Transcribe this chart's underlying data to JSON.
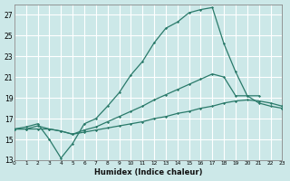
{
  "bg_color": "#cce8e8",
  "grid_color": "#add8d8",
  "line_color": "#2a7a6a",
  "xlim": [
    0,
    23
  ],
  "ylim": [
    13,
    28
  ],
  "xticks": [
    0,
    1,
    2,
    3,
    4,
    5,
    6,
    7,
    8,
    9,
    10,
    11,
    12,
    13,
    14,
    15,
    16,
    17,
    18,
    19,
    20,
    21,
    22,
    23
  ],
  "yticks": [
    13,
    15,
    17,
    19,
    21,
    23,
    25,
    27
  ],
  "xlabel": "Humidex (Indice chaleur)",
  "curve1_x": [
    0,
    1,
    2,
    3,
    4,
    5,
    6,
    7,
    8,
    9,
    10,
    11,
    12,
    13,
    14,
    15,
    16,
    17,
    18,
    19,
    20,
    21
  ],
  "curve1_y": [
    16.0,
    16.2,
    16.5,
    15.0,
    13.2,
    14.6,
    16.5,
    17.0,
    18.2,
    19.5,
    21.2,
    22.5,
    24.3,
    25.7,
    26.3,
    27.2,
    27.5,
    27.7,
    24.2,
    21.5,
    19.2,
    19.2
  ],
  "curve2_x": [
    0,
    1,
    2,
    3,
    4,
    5,
    6,
    7,
    8,
    9,
    10,
    11,
    12,
    13,
    14,
    15,
    16,
    17,
    18,
    19,
    20,
    21,
    22,
    23
  ],
  "curve2_y": [
    16.0,
    16.0,
    16.3,
    16.0,
    15.8,
    15.5,
    15.9,
    16.2,
    16.7,
    17.2,
    17.7,
    18.2,
    18.8,
    19.3,
    19.8,
    20.3,
    20.8,
    21.3,
    21.0,
    19.2,
    19.2,
    18.5,
    18.2,
    18.0
  ],
  "curve3_x": [
    0,
    1,
    2,
    3,
    4,
    5,
    6,
    7,
    8,
    9,
    10,
    11,
    12,
    13,
    14,
    15,
    16,
    17,
    18,
    19,
    20,
    21,
    22,
    23
  ],
  "curve3_y": [
    16.0,
    16.0,
    16.0,
    16.0,
    15.8,
    15.5,
    15.7,
    15.9,
    16.1,
    16.3,
    16.5,
    16.7,
    17.0,
    17.2,
    17.5,
    17.7,
    18.0,
    18.2,
    18.5,
    18.7,
    18.8,
    18.7,
    18.5,
    18.2
  ]
}
